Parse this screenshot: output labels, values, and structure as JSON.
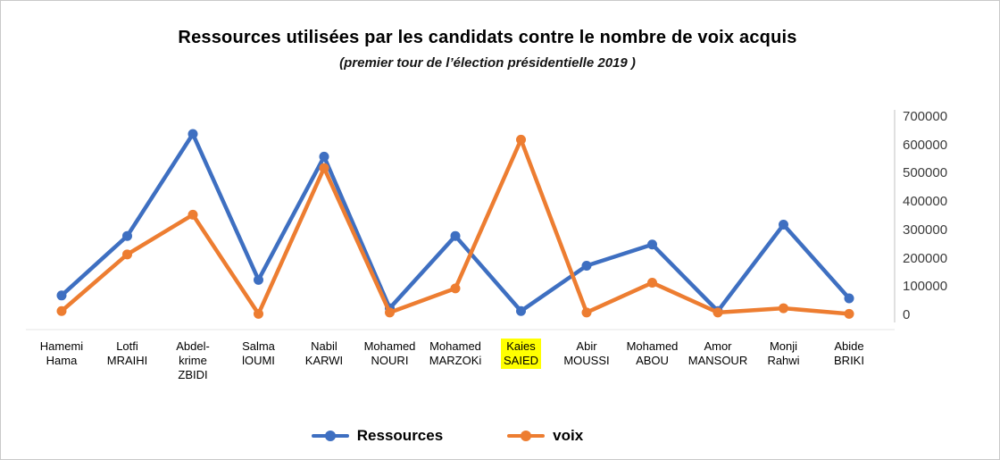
{
  "title": "Ressources utilisées par les candidats contre le nombre de voix acquis",
  "subtitle": "(premier tour de l’élection présidentielle 2019 )",
  "colors": {
    "ressources": "#3E6FC1",
    "voix": "#ED7D31",
    "highlight": "#FFFF00",
    "axis": "#d6d6d6"
  },
  "chart_data": {
    "type": "line",
    "title": "Ressources utilisées par les candidats contre le nombre de voix acquis",
    "subtitle": "(premier tour de l’élection présidentielle 2019 )",
    "categories": [
      "Hamemi Hama",
      "Lotfi MRAIHI",
      "Abdel-krime ZBIDI",
      "Salma lOUMI",
      "Nabil KARWI",
      "Mohamed NOURI",
      "Mohamed MARZOKi",
      "Kaies SAIED",
      "Abir MOUSSI",
      "Mohamed ABOU",
      "Amor MANSOUR",
      "Monji Rahwi",
      "Abide BRIKI"
    ],
    "category_lines": [
      [
        "Hamemi",
        "Hama"
      ],
      [
        "Lotfi",
        "MRAIHI"
      ],
      [
        "Abdel-",
        "krime",
        "ZBIDI"
      ],
      [
        "Salma",
        "lOUMI"
      ],
      [
        "Nabil",
        "KARWI"
      ],
      [
        "Mohamed",
        "NOURI"
      ],
      [
        "Mohamed",
        "MARZOKi"
      ],
      [
        "Kaies",
        "SAIED"
      ],
      [
        "Abir",
        "MOUSSI"
      ],
      [
        "Mohamed",
        "ABOU"
      ],
      [
        "Amor",
        "MANSOUR"
      ],
      [
        "Monji",
        "Rahwi"
      ],
      [
        "Abide",
        "BRIKI"
      ]
    ],
    "highlighted_category": "Kaies SAIED",
    "series": [
      {
        "name": "Ressources",
        "color": "#3E6FC1",
        "values": [
          70000,
          280000,
          640000,
          125000,
          560000,
          25000,
          280000,
          15000,
          175000,
          250000,
          15000,
          320000,
          60000
        ]
      },
      {
        "name": "voix",
        "color": "#ED7D31",
        "values": [
          15000,
          215000,
          355000,
          5000,
          520000,
          10000,
          95000,
          620000,
          10000,
          115000,
          10000,
          25000,
          5000
        ]
      }
    ],
    "y_ticks": [
      700000,
      600000,
      500000,
      400000,
      300000,
      200000,
      100000,
      0
    ],
    "ylim": [
      0,
      700000
    ],
    "grid": false,
    "legend_position": "bottom"
  },
  "legend": [
    {
      "label": "Ressources",
      "color": "#3E6FC1"
    },
    {
      "label": "voix",
      "color": "#ED7D31"
    }
  ]
}
